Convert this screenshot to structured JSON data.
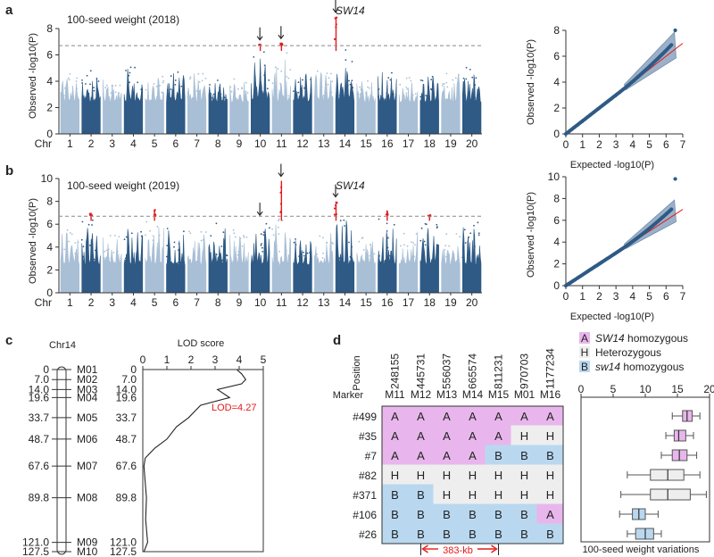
{
  "panels": {
    "a": {
      "letter": "a",
      "title": "100-seed weight (2018)",
      "gene_label": "SW14",
      "ylabel": "Observed -log10(P)",
      "qq_ylabel": "Observed -log10(P)",
      "qq_xlabel": "Expected -log10(P)"
    },
    "b": {
      "letter": "b",
      "title": "100-seed weight (2019)",
      "gene_label": "SW14",
      "ylabel": "Observed -log10(P)",
      "qq_ylabel": "Observed -log10(P)",
      "qq_xlabel": "Expected -log10(P)"
    },
    "c": {
      "letter": "c",
      "chr_label": "Chr14",
      "lod_title": "LOD score",
      "lod_annotation": "LOD=4.27"
    },
    "d": {
      "letter": "d",
      "position_label": "Position",
      "marker_label": "Marker",
      "interval_label": "383-kb",
      "box_xlabel": "100-seed weight variations"
    }
  },
  "chart_data": [
    {
      "type": "scatter",
      "id": "manhattan-2018",
      "title": "100-seed weight (2018)",
      "xlabel": "Chr",
      "ylabel": "Observed -log10(P)",
      "chromosomes": [
        "1",
        "2",
        "3",
        "4",
        "5",
        "6",
        "7",
        "8",
        "9",
        "10",
        "11",
        "12",
        "13",
        "14",
        "15",
        "16",
        "17",
        "18",
        "19",
        "20"
      ],
      "ylim": [
        0,
        8
      ],
      "yticks": [
        0,
        2,
        4,
        6,
        8
      ],
      "threshold": 6.7,
      "peak_max": [
        4.6,
        4.9,
        4.2,
        5.1,
        4.4,
        4.9,
        4.6,
        4.2,
        4.3,
        6.8,
        6.9,
        4.7,
        4.8,
        8.9,
        4.2,
        4.9,
        4.3,
        4.5,
        4.7,
        5.1
      ],
      "arrows_at_chr": [
        "10",
        "11",
        "14"
      ],
      "colors": {
        "odd": "#a9bfd6",
        "even": "#2e5a85",
        "significant": "#e41a1c"
      }
    },
    {
      "type": "scatter",
      "id": "manhattan-2019",
      "title": "100-seed weight (2019)",
      "xlabel": "Chr",
      "ylabel": "Observed -log10(P)",
      "chromosomes": [
        "1",
        "2",
        "3",
        "4",
        "5",
        "6",
        "7",
        "8",
        "9",
        "10",
        "11",
        "12",
        "13",
        "14",
        "15",
        "16",
        "17",
        "18",
        "19",
        "20"
      ],
      "ylim": [
        0,
        10
      ],
      "yticks": [
        0,
        2,
        4,
        6,
        8,
        10
      ],
      "threshold": 6.7,
      "peak_max": [
        5.8,
        7.0,
        5.1,
        6.0,
        7.3,
        5.8,
        5.4,
        6.5,
        5.5,
        6.4,
        9.8,
        5.0,
        5.3,
        8.0,
        4.9,
        7.2,
        5.4,
        6.8,
        5.2,
        6.3
      ],
      "arrows_at_chr": [
        "10",
        "11",
        "14"
      ],
      "colors": {
        "odd": "#a9bfd6",
        "even": "#2e5a85",
        "significant": "#e41a1c"
      }
    },
    {
      "type": "scatter",
      "id": "qq-2018",
      "xlabel": "Expected -log10(P)",
      "ylabel": "Observed -log10(P)",
      "xlim": [
        0,
        7
      ],
      "ylim": [
        0,
        8
      ],
      "xticks": [
        0,
        1,
        2,
        3,
        4,
        5,
        6,
        7
      ],
      "yticks": [
        0,
        2,
        4,
        6,
        8
      ],
      "observed_end": 8.9
    },
    {
      "type": "scatter",
      "id": "qq-2019",
      "xlabel": "Expected -log10(P)",
      "ylabel": "Observed -log10(P)",
      "xlim": [
        0,
        7
      ],
      "ylim": [
        0,
        10
      ],
      "xticks": [
        0,
        1,
        2,
        3,
        4,
        5,
        6,
        7
      ],
      "yticks": [
        0,
        2,
        4,
        6,
        8,
        10
      ],
      "observed_end": 9.8
    },
    {
      "type": "line",
      "id": "lod-chr14",
      "title": "LOD score",
      "xlim": [
        0,
        5
      ],
      "xticks": [
        0,
        1,
        2,
        3,
        4,
        5
      ],
      "ylim": [
        0,
        127.5
      ],
      "map_positions": [
        0,
        7.0,
        14.0,
        19.6,
        33.7,
        48.7,
        67.6,
        89.8,
        121.0,
        127.5
      ],
      "markers": [
        "M01",
        "M02",
        "M03",
        "M04",
        "M05",
        "M06",
        "M07",
        "M08",
        "M09",
        "M10"
      ],
      "profile_cm": [
        0,
        3,
        7.0,
        10,
        14.0,
        19.6,
        25,
        33.7,
        40,
        48.7,
        55,
        62,
        67.6,
        75,
        89.8,
        105,
        121.0,
        127.5
      ],
      "profile_lod": [
        3.9,
        4.1,
        4.27,
        4.1,
        3.1,
        3.6,
        2.4,
        1.9,
        1.4,
        1.0,
        0.5,
        0.1,
        0.05,
        0.08,
        0.15,
        0.12,
        0.2,
        0.05
      ],
      "peak_lod": 4.27
    },
    {
      "type": "table",
      "id": "haplotype-table",
      "positions": [
        "248155",
        "445731",
        "556037",
        "665574",
        "811231",
        "970703",
        "1177234"
      ],
      "markers": [
        "M11",
        "M12",
        "M13",
        "M14",
        "M15",
        "M01",
        "M16"
      ],
      "rows": [
        {
          "line": "#499",
          "genotypes": [
            "A",
            "A",
            "A",
            "A",
            "A",
            "A",
            "A"
          ]
        },
        {
          "line": "#35",
          "genotypes": [
            "A",
            "A",
            "A",
            "A",
            "A",
            "H",
            "H"
          ]
        },
        {
          "line": "#7",
          "genotypes": [
            "A",
            "A",
            "A",
            "A",
            "B",
            "B",
            "B"
          ]
        },
        {
          "line": "#82",
          "genotypes": [
            "H",
            "H",
            "H",
            "H",
            "H",
            "H",
            "H"
          ]
        },
        {
          "line": "#371",
          "genotypes": [
            "B",
            "B",
            "H",
            "H",
            "H",
            "H",
            "H"
          ]
        },
        {
          "line": "#106",
          "genotypes": [
            "B",
            "B",
            "B",
            "B",
            "B",
            "B",
            "A"
          ]
        },
        {
          "line": "#26",
          "genotypes": [
            "B",
            "B",
            "B",
            "B",
            "B",
            "B",
            "B"
          ]
        }
      ],
      "legend": [
        {
          "code": "A",
          "text": "SW14 homozygous",
          "color": "#e8b6ec"
        },
        {
          "code": "H",
          "text": "Heterozygous",
          "color": "#eeeeee"
        },
        {
          "code": "B",
          "text": "sw14 homozygous",
          "color": "#b9d8f0"
        }
      ]
    },
    {
      "type": "bar",
      "id": "seed-weight-boxplot",
      "xlabel": "100-seed weight variations",
      "xlim": [
        0,
        20
      ],
      "xticks": [
        0,
        5,
        10,
        15,
        20
      ],
      "categories": [
        "#499",
        "#35",
        "#7",
        "#82",
        "#371",
        "#106",
        "#26"
      ],
      "boxes": [
        {
          "min": 14.2,
          "q1": 15.8,
          "median": 16.5,
          "q3": 17.3,
          "max": 18.5,
          "group": "A"
        },
        {
          "min": 13.2,
          "q1": 14.5,
          "median": 15.2,
          "q3": 16.3,
          "max": 17.5,
          "group": "A"
        },
        {
          "min": 12.5,
          "q1": 14.2,
          "median": 15.3,
          "q3": 16.5,
          "max": 18.0,
          "group": "A"
        },
        {
          "min": 7.2,
          "q1": 10.8,
          "median": 13.5,
          "q3": 16.0,
          "max": 18.5,
          "group": "H"
        },
        {
          "min": 6.2,
          "q1": 10.8,
          "median": 13.5,
          "q3": 17.0,
          "max": 19.5,
          "group": "H"
        },
        {
          "min": 6.0,
          "q1": 8.0,
          "median": 9.0,
          "q3": 10.0,
          "max": 12.0,
          "group": "B"
        },
        {
          "min": 7.2,
          "q1": 8.5,
          "median": 10.0,
          "q3": 11.3,
          "max": 12.5,
          "group": "B"
        }
      ]
    }
  ]
}
